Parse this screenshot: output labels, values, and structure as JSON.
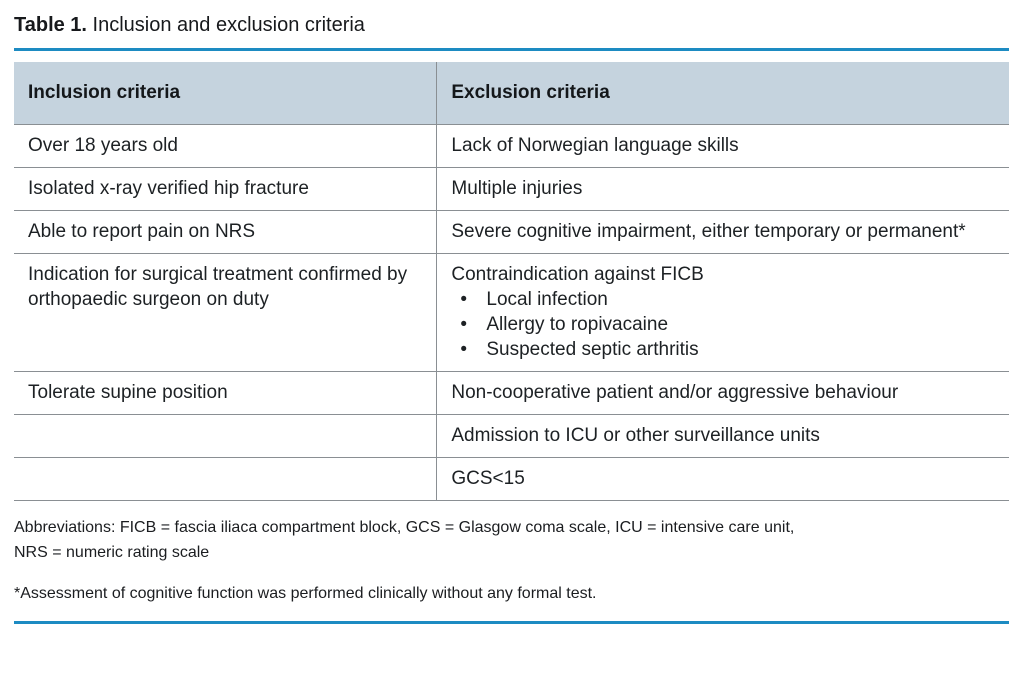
{
  "page": {
    "title_label": "Table 1.",
    "title_text": " Inclusion and exclusion criteria"
  },
  "table": {
    "columns": [
      "Inclusion criteria",
      "Exclusion criteria"
    ],
    "rows": [
      {
        "inclusion": "Over 18 years old",
        "exclusion": "Lack of Norwegian language skills"
      },
      {
        "inclusion": "Isolated x-ray verified hip fracture",
        "exclusion": "Multiple injuries"
      },
      {
        "inclusion": "Able to report pain on NRS",
        "exclusion": "Severe cognitive impairment, either temporary or permanent*"
      },
      {
        "inclusion": "Indication for surgical treatment confirmed by orthopaedic surgeon on duty",
        "exclusion": "Contraindication against FICB",
        "exclusion_bullets": [
          "Local infection",
          "Allergy to ropivacaine",
          "Suspected septic arthritis"
        ]
      },
      {
        "inclusion": "Tolerate supine position",
        "exclusion": "Non-cooperative patient and/or aggressive behaviour"
      },
      {
        "inclusion": "",
        "exclusion": "Admission to ICU or other surveillance units"
      },
      {
        "inclusion": "",
        "exclusion": "GCS<15"
      }
    ]
  },
  "footnotes": {
    "abbreviations_line1": "Abbreviations: FICB = fascia iliaca compartment block, GCS = Glasgow coma scale, ICU = intensive care unit,",
    "abbreviations_line2": "NRS = numeric rating scale",
    "asterisk_note": "*Assessment of cognitive function was performed clinically without any formal test."
  },
  "colors": {
    "accent_rule": "#1d8bc2",
    "header_background": "#c5d3de",
    "grid_line": "#8a8f93",
    "text": "#1d2124"
  }
}
